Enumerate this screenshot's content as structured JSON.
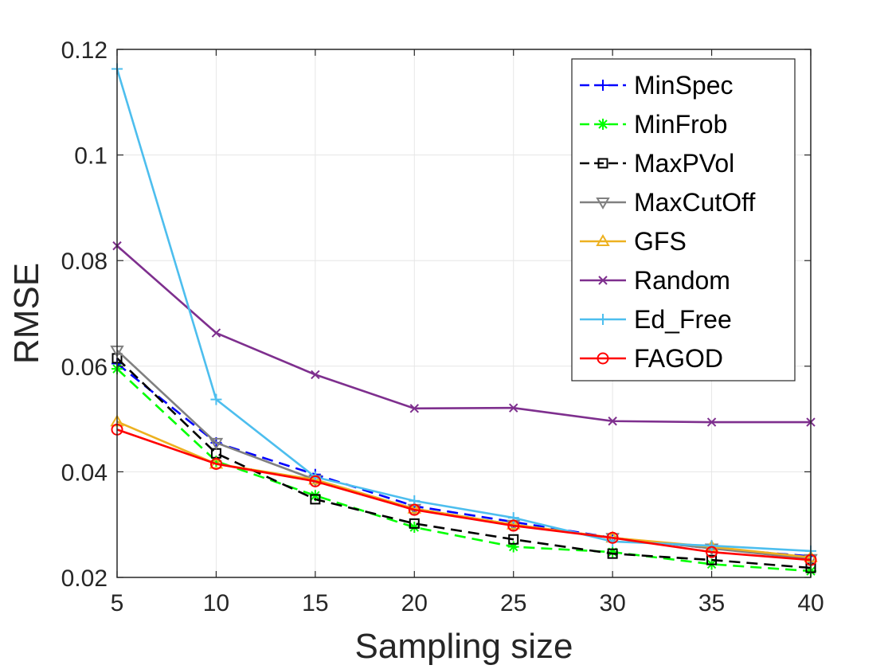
{
  "chart_data": {
    "type": "line",
    "title": "",
    "xlabel": "Sampling size",
    "ylabel": "RMSE",
    "x": [
      5,
      10,
      15,
      20,
      25,
      30,
      35,
      40
    ],
    "xlim": [
      5,
      40
    ],
    "ylim": [
      0.02,
      0.12
    ],
    "xticks": [
      "5",
      "10",
      "15",
      "20",
      "25",
      "30",
      "35",
      "40"
    ],
    "yticks": [
      "0.02",
      "0.04",
      "0.06",
      "0.08",
      "0.1",
      "0.12"
    ],
    "ytick_values": [
      0.02,
      0.04,
      0.06,
      0.08,
      0.1,
      0.12
    ],
    "grid": true,
    "legend_position": "top-right",
    "series": [
      {
        "name": "MinSpec",
        "color": "#0000ff",
        "marker": "plus",
        "dash": "dashed",
        "values": [
          0.0605,
          0.0455,
          0.0395,
          0.0335,
          0.0305,
          0.0275,
          0.0255,
          0.024
        ]
      },
      {
        "name": "MinFrob",
        "color": "#00ff00",
        "marker": "asterisk",
        "dash": "dashed",
        "values": [
          0.0595,
          0.042,
          0.0355,
          0.0295,
          0.0258,
          0.0248,
          0.0225,
          0.0212
        ]
      },
      {
        "name": "MaxPVol",
        "color": "#000000",
        "marker": "square",
        "dash": "dashed",
        "values": [
          0.0615,
          0.0435,
          0.0348,
          0.0302,
          0.0272,
          0.0245,
          0.0233,
          0.0218
        ]
      },
      {
        "name": "MaxCutOff",
        "color": "#808080",
        "marker": "triangle-down",
        "dash": "solid",
        "values": [
          0.063,
          0.0455,
          0.0385,
          0.033,
          0.03,
          0.0275,
          0.0255,
          0.0235
        ]
      },
      {
        "name": "GFS",
        "color": "#edb120",
        "marker": "triangle-up",
        "dash": "solid",
        "values": [
          0.0495,
          0.0415,
          0.0385,
          0.033,
          0.03,
          0.0275,
          0.0258,
          0.0238
        ]
      },
      {
        "name": "Random",
        "color": "#7e2f8e",
        "marker": "x",
        "dash": "solid",
        "values": [
          0.0828,
          0.0663,
          0.0584,
          0.052,
          0.0521,
          0.0496,
          0.0494,
          0.0494
        ]
      },
      {
        "name": "Ed_Free",
        "color": "#4dbeee",
        "marker": "plus",
        "dash": "solid",
        "values": [
          0.1163,
          0.0537,
          0.039,
          0.0345,
          0.0313,
          0.0268,
          0.026,
          0.025
        ]
      },
      {
        "name": "FAGOD",
        "color": "#ff0000",
        "marker": "circle",
        "dash": "solid",
        "values": [
          0.048,
          0.0415,
          0.0382,
          0.0328,
          0.0298,
          0.0275,
          0.0248,
          0.0233
        ]
      }
    ]
  }
}
